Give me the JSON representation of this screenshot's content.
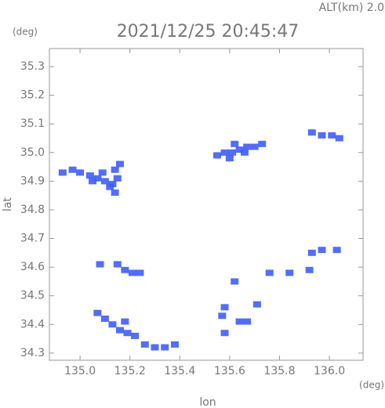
{
  "chart_data": {
    "type": "scatter",
    "altitude_label": "ALT(km) 2.0",
    "title": "2021/12/25 20:45:47",
    "y_unit": "(deg)",
    "x_unit": "(deg)",
    "ylabel": "lat",
    "xlabel": "lon",
    "xlim": [
      134.877,
      136.135
    ],
    "ylim": [
      34.275,
      35.363
    ],
    "xticks": [
      {
        "value": 135,
        "label": "135.0"
      },
      135.2,
      135.4,
      135.6,
      135.8,
      {
        "value": 136,
        "label": "136.0"
      }
    ],
    "yticks": [
      34.3,
      34.4,
      34.5,
      34.6,
      34.7,
      34.8,
      34.9,
      {
        "value": 35,
        "label": "35.0"
      },
      35.1,
      35.2,
      35.3
    ],
    "color": "#3f5ef5",
    "x": [
      134.93,
      134.97,
      135.0,
      135.04,
      135.07,
      135.1,
      135.13,
      135.15,
      135.14,
      135.16,
      135.12,
      135.14,
      135.05,
      135.09,
      135.55,
      135.58,
      135.61,
      135.64,
      135.67,
      135.7,
      135.6,
      135.66,
      135.73,
      135.62,
      135.93,
      135.97,
      136.01,
      136.04,
      135.08,
      135.15,
      135.18,
      135.21,
      135.24,
      135.07,
      135.1,
      135.13,
      135.16,
      135.19,
      135.22,
      135.18,
      135.26,
      135.3,
      135.34,
      135.38,
      135.58,
      135.57,
      135.64,
      135.67,
      135.71,
      135.58,
      135.62,
      135.76,
      135.84,
      135.92,
      135.93,
      135.97,
      136.03
    ],
    "y": [
      34.93,
      34.94,
      34.93,
      34.92,
      34.91,
      34.9,
      34.89,
      34.91,
      34.94,
      34.96,
      34.88,
      34.86,
      34.9,
      34.93,
      34.99,
      35.0,
      35.0,
      35.01,
      35.02,
      35.02,
      34.98,
      35.0,
      35.03,
      35.03,
      35.07,
      35.06,
      35.06,
      35.05,
      34.61,
      34.61,
      34.59,
      34.58,
      34.58,
      34.44,
      34.42,
      34.4,
      34.38,
      34.37,
      34.36,
      34.41,
      34.33,
      34.32,
      34.32,
      34.33,
      34.46,
      34.43,
      34.41,
      34.41,
      34.47,
      34.37,
      34.55,
      34.58,
      34.58,
      34.59,
      34.65,
      34.66,
      34.66
    ]
  }
}
